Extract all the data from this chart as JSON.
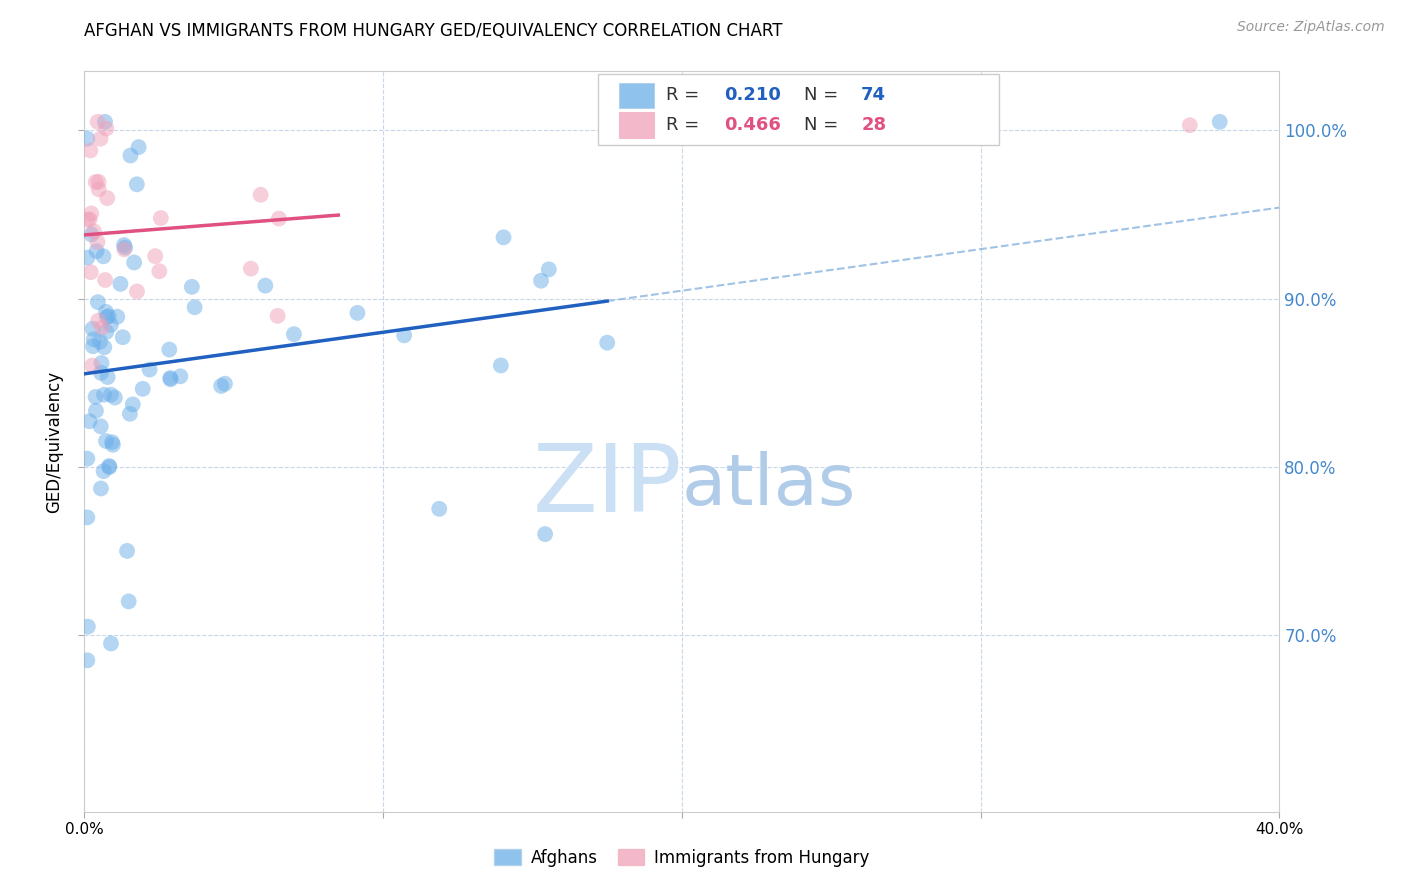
{
  "title": "AFGHAN VS IMMIGRANTS FROM HUNGARY GED/EQUIVALENCY CORRELATION CHART",
  "source": "Source: ZipAtlas.com",
  "ylabel": "GED/Equivalency",
  "ytick_labels": [
    "100.0%",
    "90.0%",
    "80.0%",
    "70.0%"
  ],
  "ytick_vals": [
    1.0,
    0.9,
    0.8,
    0.7
  ],
  "xlim": [
    0.0,
    0.4
  ],
  "ylim": [
    0.595,
    1.035
  ],
  "legend_blue_r": "0.210",
  "legend_blue_n": "74",
  "legend_pink_r": "0.466",
  "legend_pink_n": "28",
  "blue_color": "#6aaee8",
  "pink_color": "#f0a0b8",
  "blue_line_color": "#2060c0",
  "pink_line_color": "#e05080",
  "dashed_line_color": "#90b8e0",
  "background_color": "#FFFFFF",
  "grid_color": "#c8d8e8",
  "right_tick_color": "#4488cc",
  "title_fontsize": 12,
  "watermark_color": "#cce0f5"
}
